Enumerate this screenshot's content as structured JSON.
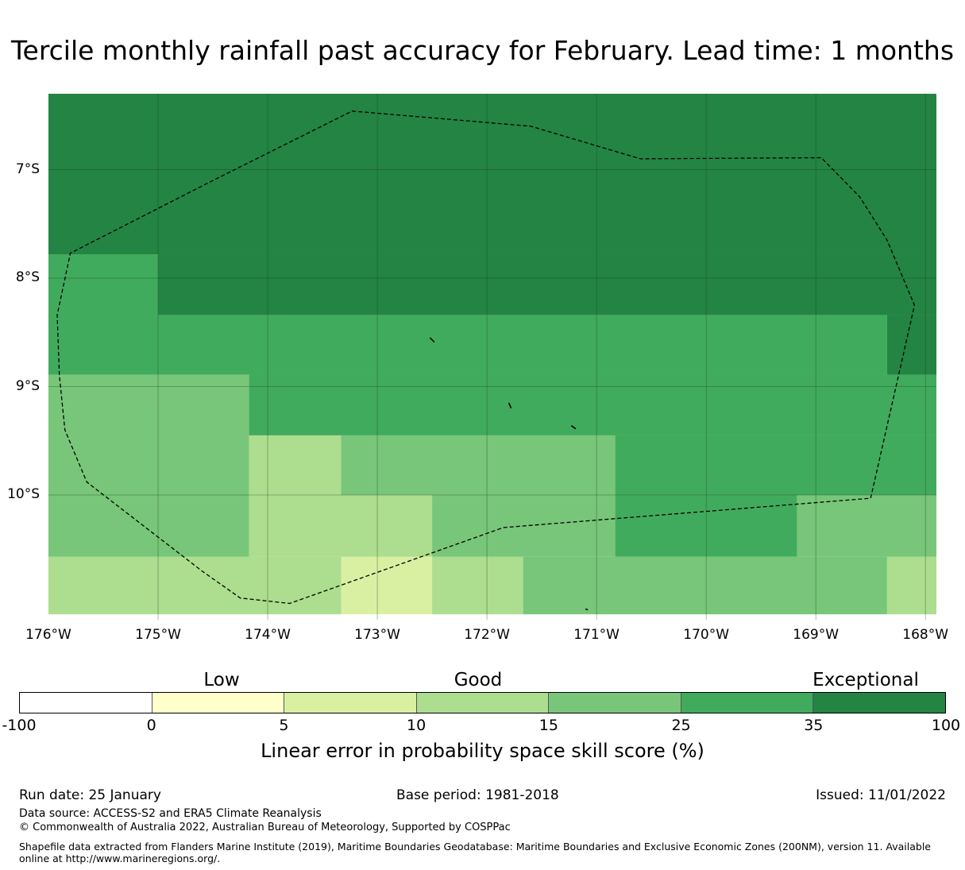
{
  "title": "Tercile monthly rainfall past accuracy for February. Lead time: 1 months",
  "map": {
    "lon_range": [
      -176,
      -167.9
    ],
    "lat_range": [
      -11.15,
      -6.3
    ],
    "lat_labels": [
      "7°S",
      "8°S",
      "9°S",
      "10°S"
    ],
    "lon_labels": [
      "176°W",
      "175°W",
      "174°W",
      "173°W",
      "172°W",
      "171°W",
      "170°W",
      "169°W",
      "168°W"
    ],
    "grid_lons": [
      -175,
      -174,
      -173,
      -172,
      -171,
      -170,
      -169,
      -168
    ],
    "grid_lats": [
      -7,
      -8,
      -9,
      -10
    ],
    "cells": [
      {
        "lon": [
          -176,
          -167.9
        ],
        "lat": [
          -7.78,
          -6.3
        ],
        "score": 50
      },
      {
        "lon": [
          -175,
          -167.9
        ],
        "lat": [
          -8.34,
          -7.78
        ],
        "score": 50
      },
      {
        "lon": [
          -176,
          -175
        ],
        "lat": [
          -8.89,
          -7.78
        ],
        "score": 30
      },
      {
        "lon": [
          -175,
          -168.35
        ],
        "lat": [
          -8.89,
          -8.34
        ],
        "score": 30
      },
      {
        "lon": [
          -168.35,
          -167.9
        ],
        "lat": [
          -8.89,
          -8.34
        ],
        "score": 50
      },
      {
        "lon": [
          -176,
          -174.17
        ],
        "lat": [
          -10.57,
          -8.89
        ],
        "score": 20
      },
      {
        "lon": [
          -174.17,
          -167.9
        ],
        "lat": [
          -9.45,
          -8.89
        ],
        "score": 30
      },
      {
        "lon": [
          -174.17,
          -173.33
        ],
        "lat": [
          -10.0,
          -9.45
        ],
        "score": 12
      },
      {
        "lon": [
          -173.33,
          -170.83
        ],
        "lat": [
          -10.0,
          -9.45
        ],
        "score": 20
      },
      {
        "lon": [
          -170.83,
          -167.9
        ],
        "lat": [
          -10.0,
          -9.45
        ],
        "score": 30
      },
      {
        "lon": [
          -174.17,
          -172.5
        ],
        "lat": [
          -10.57,
          -10.0
        ],
        "score": 12
      },
      {
        "lon": [
          -172.5,
          -170.83
        ],
        "lat": [
          -10.57,
          -10.0
        ],
        "score": 20
      },
      {
        "lon": [
          -170.83,
          -169.17
        ],
        "lat": [
          -10.57,
          -10.0
        ],
        "score": 30
      },
      {
        "lon": [
          -169.17,
          -167.9
        ],
        "lat": [
          -10.57,
          -10.0
        ],
        "score": 20
      },
      {
        "lon": [
          -176,
          -173.33
        ],
        "lat": [
          -11.1,
          -10.57
        ],
        "score": 12
      },
      {
        "lon": [
          -173.33,
          -172.5
        ],
        "lat": [
          -11.1,
          -10.57
        ],
        "score": 7
      },
      {
        "lon": [
          -172.5,
          -171.67
        ],
        "lat": [
          -11.1,
          -10.57
        ],
        "score": 12
      },
      {
        "lon": [
          -171.67,
          -168.35
        ],
        "lat": [
          -11.1,
          -10.57
        ],
        "score": 20
      },
      {
        "lon": [
          -168.35,
          -167.9
        ],
        "lat": [
          -11.1,
          -10.57
        ],
        "score": 12
      }
    ],
    "eez_boundary": [
      [
        -173.23,
        -6.46
      ],
      [
        -171.6,
        -6.6
      ],
      [
        -170.6,
        -6.9
      ],
      [
        -168.95,
        -6.89
      ],
      [
        -168.6,
        -7.25
      ],
      [
        -168.35,
        -7.65
      ],
      [
        -168.1,
        -8.25
      ],
      [
        -168.5,
        -10.03
      ],
      [
        -171.85,
        -10.3
      ],
      [
        -173.8,
        -11.0
      ],
      [
        -174.25,
        -10.95
      ],
      [
        -174.6,
        -10.7
      ],
      [
        -175.65,
        -9.88
      ],
      [
        -175.85,
        -9.4
      ],
      [
        -175.9,
        -8.9
      ],
      [
        -175.92,
        -8.34
      ],
      [
        -175.8,
        -7.77
      ],
      [
        -174.5,
        -7.1
      ],
      [
        -173.23,
        -6.46
      ]
    ],
    "islands": [
      {
        "lon": [
          -172.52,
          -172.48
        ],
        "lat": [
          -8.55,
          -8.59
        ]
      },
      {
        "lon": [
          -171.8,
          -171.78
        ],
        "lat": [
          -9.15,
          -9.2
        ]
      },
      {
        "lon": [
          -171.23,
          -171.19
        ],
        "lat": [
          -9.36,
          -9.39
        ]
      },
      {
        "lon": [
          -171.1,
          -171.08
        ],
        "lat": [
          -11.05,
          -11.06
        ]
      }
    ]
  },
  "colorbar": {
    "categories": [
      "Low",
      "Good",
      "Exceptional"
    ],
    "bins": [
      -100,
      0,
      5,
      10,
      15,
      25,
      35,
      100
    ],
    "tick_labels": [
      "-100",
      "0",
      "5",
      "10",
      "15",
      "25",
      "35",
      "100"
    ],
    "colors": [
      "#ffffff",
      "#ffffcc",
      "#d9f0a3",
      "#addd8e",
      "#78c679",
      "#41ab5d",
      "#238443"
    ],
    "title": "Linear error in probability space skill score (%)"
  },
  "footer": {
    "run_date": "Run date: 25 January",
    "base_period": "Base period: 1981-2018",
    "issued": "Issued: 11/01/2022",
    "data_source": "Data source: ACCESS-S2 and ERA5 Climate Reanalysis",
    "copyright": "© Commonwealth of Australia 2022, Australian Bureau of Meteorology, Supported by COSPPac",
    "shapefile": "Shapefile data extracted from Flanders Marine Institute (2019), Maritime Boundaries Geodatabase: Maritime Boundaries and Exclusive Economic Zones (200NM), version 11. Available online at http://www.marineregions.org/."
  }
}
